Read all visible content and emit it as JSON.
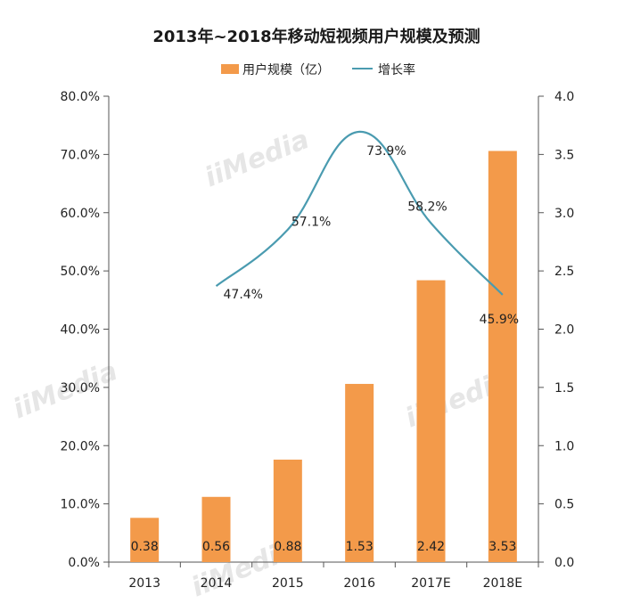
{
  "chart_data": {
    "type": "bar",
    "title": "2013年~2018年移动短视频用户规模及预测",
    "categories": [
      "2013",
      "2014",
      "2015",
      "2016",
      "2017E",
      "2018E"
    ],
    "series": [
      {
        "name": "用户规模（亿）",
        "type": "bar",
        "axis": "right",
        "values": [
          0.38,
          0.56,
          0.88,
          1.53,
          2.42,
          3.53
        ],
        "labels": [
          "0.38",
          "0.56",
          "0.88",
          "1.53",
          "2.42",
          "3.53"
        ],
        "color": "#f39a4a"
      },
      {
        "name": "增长率",
        "type": "line",
        "axis": "left",
        "values": [
          null,
          47.4,
          57.1,
          73.9,
          58.2,
          45.9
        ],
        "labels": [
          null,
          "47.4%",
          "57.1%",
          "73.9%",
          "58.2%",
          "45.9%"
        ],
        "color": "#4a9bb0"
      }
    ],
    "left_axis": {
      "range": [
        0,
        80
      ],
      "ticks": [
        "0.0%",
        "10.0%",
        "20.0%",
        "30.0%",
        "40.0%",
        "50.0%",
        "60.0%",
        "70.0%",
        "80.0%"
      ]
    },
    "right_axis": {
      "range": [
        0,
        4
      ],
      "ticks": [
        "0.0",
        "0.5",
        "1.0",
        "1.5",
        "2.0",
        "2.5",
        "3.0",
        "3.5",
        "4.0"
      ]
    },
    "legend_position": "top"
  },
  "watermark": "iiMedia"
}
